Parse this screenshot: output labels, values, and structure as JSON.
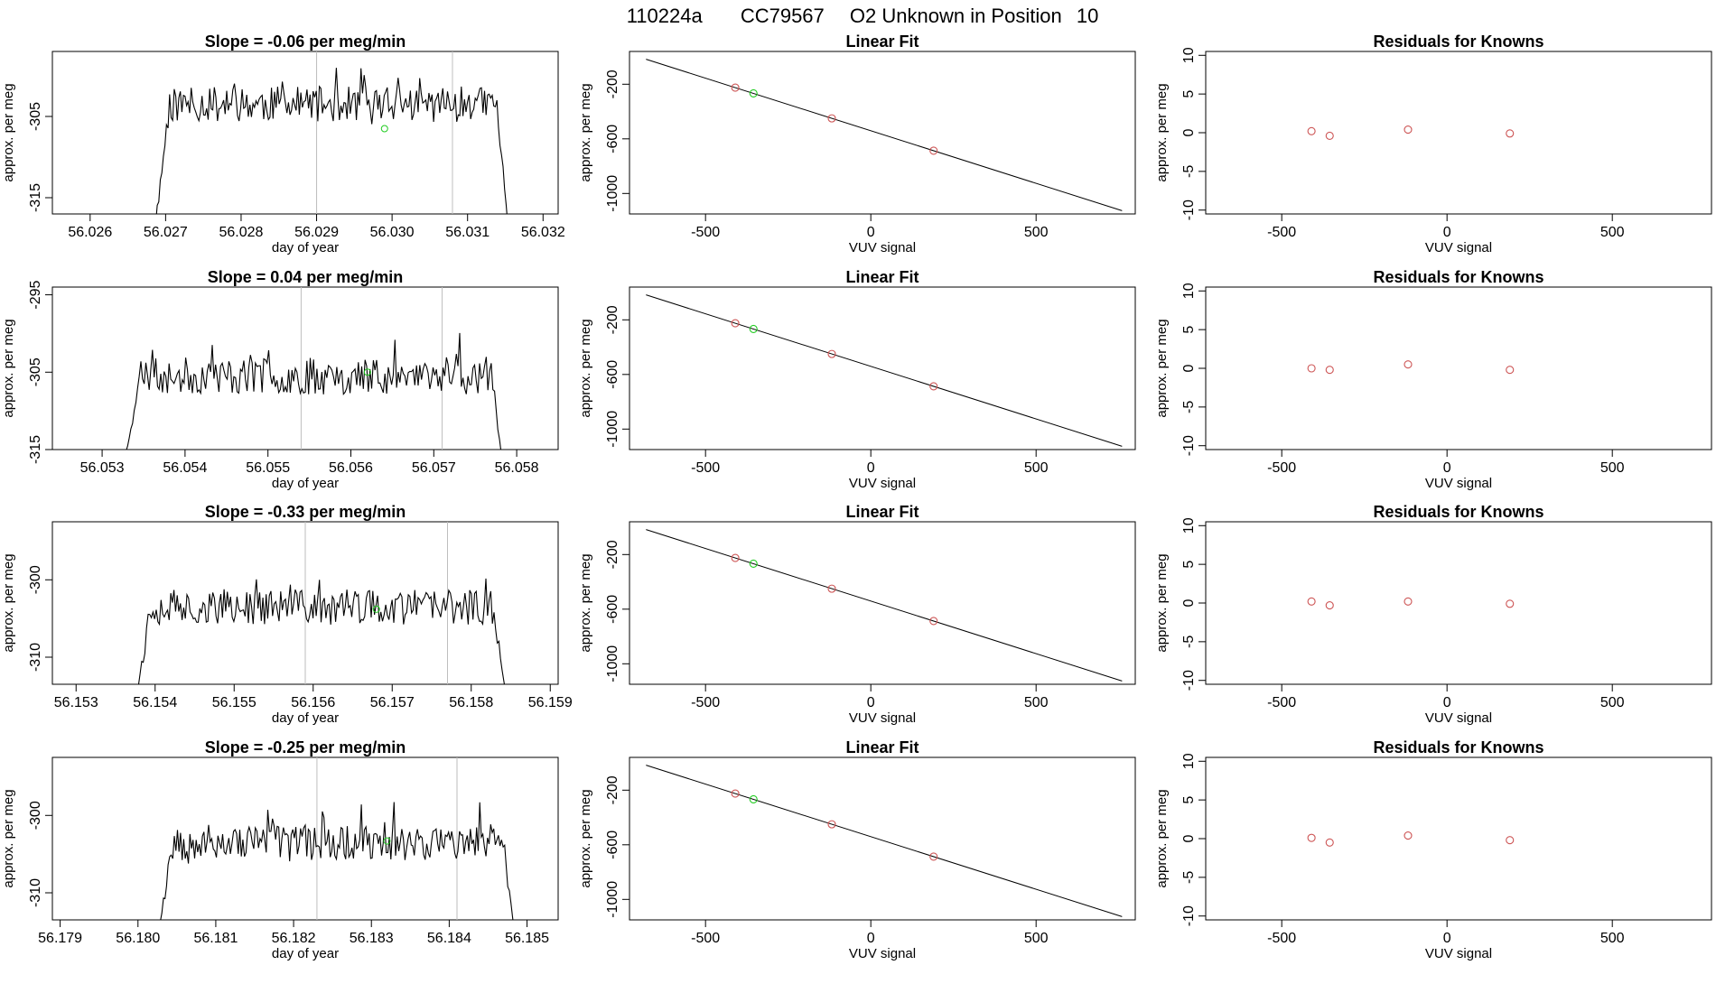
{
  "page": {
    "title_id": "110224a",
    "title_tank": "CC79567",
    "title_desc": "O2 Unknown in Position",
    "title_pos": "10"
  },
  "colors": {
    "known": "#cd5555",
    "unknown": "#22cc22",
    "series": "#000000",
    "vline": "#bebebe"
  },
  "chart_data": [
    {
      "type": "line",
      "row": 1,
      "title": "Slope =  -0.06  per meg/min",
      "xlabel": "day of year",
      "ylabel": "approx. per meg",
      "xlim": [
        56.0255,
        56.0322
      ],
      "ylim": [
        -317,
        -297
      ],
      "xticks": [
        56.026,
        56.027,
        56.028,
        56.029,
        56.03,
        56.031,
        56.032
      ],
      "xtick_labels": [
        "56.026",
        "56.027",
        "56.028",
        "56.029",
        "56.030",
        "56.031",
        "56.032"
      ],
      "yticks": [
        -315,
        -305
      ],
      "ytick_labels": [
        "-315",
        "-305"
      ],
      "xstart": 56.0268,
      "xend": 56.0316,
      "vlines": [
        56.029,
        56.0308
      ],
      "unknown_point": {
        "x": 56.0299,
        "y": -306.5
      },
      "seed": 11,
      "base": -303.5,
      "amp": 2.2,
      "start_y": -320,
      "end_y": -320
    },
    {
      "type": "line",
      "row": 2,
      "title": "Slope =  0.04  per meg/min",
      "xlabel": "day of year",
      "ylabel": "approx. per meg",
      "xlim": [
        56.0524,
        56.0585
      ],
      "ylim": [
        -315,
        -294
      ],
      "xticks": [
        56.053,
        56.054,
        56.055,
        56.056,
        56.057,
        56.058
      ],
      "xtick_labels": [
        "56.053",
        "56.054",
        "56.055",
        "56.056",
        "56.057",
        "56.058"
      ],
      "yticks": [
        -315,
        -305,
        -295
      ],
      "ytick_labels": [
        "-315",
        "-305",
        "-295"
      ],
      "xstart": 56.0532,
      "xend": 56.0579,
      "vlines": [
        56.0554,
        56.0571
      ],
      "unknown_point": {
        "x": 56.0562,
        "y": -305.0
      },
      "seed": 23,
      "base": -305.5,
      "amp": 2.4,
      "start_y": -318,
      "end_y": -318
    },
    {
      "type": "line",
      "row": 3,
      "title": "Slope =  -0.33  per meg/min",
      "xlabel": "day of year",
      "ylabel": "approx. per meg",
      "xlim": [
        56.1527,
        56.1591
      ],
      "ylim": [
        -313.5,
        -292.5
      ],
      "xticks": [
        56.153,
        56.154,
        56.155,
        56.156,
        56.157,
        56.158,
        56.159
      ],
      "xtick_labels": [
        "56.153",
        "56.154",
        "56.155",
        "56.156",
        "56.157",
        "56.158",
        "56.159"
      ],
      "yticks": [
        -310,
        -300
      ],
      "ytick_labels": [
        "-310",
        "-300"
      ],
      "xstart": 56.1537,
      "xend": 56.1585,
      "vlines": [
        56.1559,
        56.1577
      ],
      "unknown_point": {
        "x": 56.1568,
        "y": -303.8
      },
      "seed": 37,
      "base": -303.5,
      "amp": 2.3,
      "start_y": -316,
      "end_y": -316
    },
    {
      "type": "line",
      "row": 4,
      "title": "Slope =  -0.25  per meg/min",
      "xlabel": "day of year",
      "ylabel": "approx. per meg",
      "xlim": [
        56.1789,
        56.1854
      ],
      "ylim": [
        -313.5,
        -292.5
      ],
      "xticks": [
        56.179,
        56.18,
        56.181,
        56.182,
        56.183,
        56.184,
        56.185
      ],
      "xtick_labels": [
        "56.179",
        "56.180",
        "56.181",
        "56.182",
        "56.183",
        "56.184",
        "56.185"
      ],
      "yticks": [
        -310,
        -300
      ],
      "ytick_labels": [
        "-310",
        "-300"
      ],
      "xstart": 56.1802,
      "xend": 56.1849,
      "vlines": [
        56.1823,
        56.1841
      ],
      "unknown_point": {
        "x": 56.1832,
        "y": -303.3
      },
      "seed": 53,
      "base": -303.5,
      "amp": 2.3,
      "start_y": -316,
      "end_y": -316
    },
    {
      "type": "scatter",
      "row": 1,
      "title": "Linear Fit",
      "xlabel": "VUV signal",
      "ylabel": "approx. per meg",
      "xlim": [
        -730,
        800
      ],
      "ylim": [
        -1150,
        40
      ],
      "xticks": [
        -500,
        0,
        500
      ],
      "xtick_labels": [
        "-500",
        "0",
        "500"
      ],
      "yticks": [
        -1000,
        -600,
        -200
      ],
      "ytick_labels": [
        "-1000",
        "-600",
        "-200"
      ],
      "fit_line": {
        "x1": -680,
        "y1": -17,
        "x2": 760,
        "y2": -1126
      },
      "known_points": [
        {
          "x": -410,
          "y": -225
        },
        {
          "x": -118,
          "y": -450
        },
        {
          "x": 190,
          "y": -687
        }
      ],
      "unknown_points": [
        {
          "x": -355,
          "y": -267
        }
      ]
    },
    {
      "type": "scatter",
      "row": 2,
      "title": "Linear Fit",
      "xlabel": "VUV signal",
      "ylabel": "approx. per meg",
      "xlim": [
        -730,
        800
      ],
      "ylim": [
        -1150,
        40
      ],
      "xticks": [
        -500,
        0,
        500
      ],
      "xtick_labels": [
        "-500",
        "0",
        "500"
      ],
      "yticks": [
        -1000,
        -600,
        -200
      ],
      "ytick_labels": [
        "-1000",
        "-600",
        "-200"
      ],
      "fit_line": {
        "x1": -680,
        "y1": -17,
        "x2": 760,
        "y2": -1126
      },
      "known_points": [
        {
          "x": -410,
          "y": -225
        },
        {
          "x": -118,
          "y": -450
        },
        {
          "x": 190,
          "y": -687
        }
      ],
      "unknown_points": [
        {
          "x": -355,
          "y": -267
        }
      ]
    },
    {
      "type": "scatter",
      "row": 3,
      "title": "Linear Fit",
      "xlabel": "VUV signal",
      "ylabel": "approx. per meg",
      "xlim": [
        -730,
        800
      ],
      "ylim": [
        -1150,
        40
      ],
      "xticks": [
        -500,
        0,
        500
      ],
      "xtick_labels": [
        "-500",
        "0",
        "500"
      ],
      "yticks": [
        -1000,
        -600,
        -200
      ],
      "ytick_labels": [
        "-1000",
        "-600",
        "-200"
      ],
      "fit_line": {
        "x1": -680,
        "y1": -17,
        "x2": 760,
        "y2": -1126
      },
      "known_points": [
        {
          "x": -410,
          "y": -225
        },
        {
          "x": -118,
          "y": -450
        },
        {
          "x": 190,
          "y": -687
        }
      ],
      "unknown_points": [
        {
          "x": -355,
          "y": -267
        }
      ]
    },
    {
      "type": "scatter",
      "row": 4,
      "title": "Linear Fit",
      "xlabel": "VUV signal",
      "ylabel": "approx. per meg",
      "xlim": [
        -730,
        800
      ],
      "ylim": [
        -1150,
        40
      ],
      "xticks": [
        -500,
        0,
        500
      ],
      "xtick_labels": [
        "-500",
        "0",
        "500"
      ],
      "yticks": [
        -1000,
        -600,
        -200
      ],
      "ytick_labels": [
        "-1000",
        "-600",
        "-200"
      ],
      "fit_line": {
        "x1": -680,
        "y1": -17,
        "x2": 760,
        "y2": -1126
      },
      "known_points": [
        {
          "x": -410,
          "y": -225
        },
        {
          "x": -118,
          "y": -450
        },
        {
          "x": 190,
          "y": -687
        }
      ],
      "unknown_points": [
        {
          "x": -355,
          "y": -267
        }
      ]
    },
    {
      "type": "scatter",
      "row": 1,
      "title": "Residuals for Knowns",
      "xlabel": "VUV signal",
      "ylabel": "approx. per meg",
      "xlim": [
        -730,
        800
      ],
      "ylim": [
        -10.5,
        10.5
      ],
      "xticks": [
        -500,
        0,
        500
      ],
      "xtick_labels": [
        "-500",
        "0",
        "500"
      ],
      "yticks": [
        -10,
        -5,
        0,
        5,
        10
      ],
      "ytick_labels": [
        "-10",
        "-5",
        "0",
        "5",
        "10"
      ],
      "known_points": [
        {
          "x": -410,
          "y": 0.2
        },
        {
          "x": -355,
          "y": -0.4
        },
        {
          "x": -118,
          "y": 0.4
        },
        {
          "x": 190,
          "y": -0.1
        }
      ]
    },
    {
      "type": "scatter",
      "row": 2,
      "title": "Residuals for Knowns",
      "xlabel": "VUV signal",
      "ylabel": "approx. per meg",
      "xlim": [
        -730,
        800
      ],
      "ylim": [
        -10.5,
        10.5
      ],
      "xticks": [
        -500,
        0,
        500
      ],
      "xtick_labels": [
        "-500",
        "0",
        "500"
      ],
      "yticks": [
        -10,
        -5,
        0,
        5,
        10
      ],
      "ytick_labels": [
        "-10",
        "-5",
        "0",
        "5",
        "10"
      ],
      "known_points": [
        {
          "x": -410,
          "y": 0.0
        },
        {
          "x": -355,
          "y": -0.2
        },
        {
          "x": -118,
          "y": 0.5
        },
        {
          "x": 190,
          "y": -0.2
        }
      ]
    },
    {
      "type": "scatter",
      "row": 3,
      "title": "Residuals for Knowns",
      "xlabel": "VUV signal",
      "ylabel": "approx. per meg",
      "xlim": [
        -730,
        800
      ],
      "ylim": [
        -10.5,
        10.5
      ],
      "xticks": [
        -500,
        0,
        500
      ],
      "xtick_labels": [
        "-500",
        "0",
        "500"
      ],
      "yticks": [
        -10,
        -5,
        0,
        5,
        10
      ],
      "ytick_labels": [
        "-10",
        "-5",
        "0",
        "5",
        "10"
      ],
      "known_points": [
        {
          "x": -410,
          "y": 0.2
        },
        {
          "x": -355,
          "y": -0.3
        },
        {
          "x": -118,
          "y": 0.2
        },
        {
          "x": 190,
          "y": -0.1
        }
      ]
    },
    {
      "type": "scatter",
      "row": 4,
      "title": "Residuals for Knowns",
      "xlabel": "VUV signal",
      "ylabel": "approx. per meg",
      "xlim": [
        -730,
        800
      ],
      "ylim": [
        -10.5,
        10.5
      ],
      "xticks": [
        -500,
        0,
        500
      ],
      "xtick_labels": [
        "-500",
        "0",
        "500"
      ],
      "yticks": [
        -10,
        -5,
        0,
        5,
        10
      ],
      "ytick_labels": [
        "-10",
        "-5",
        "0",
        "5",
        "10"
      ],
      "known_points": [
        {
          "x": -410,
          "y": 0.1
        },
        {
          "x": -355,
          "y": -0.5
        },
        {
          "x": -118,
          "y": 0.4
        },
        {
          "x": 190,
          "y": -0.2
        }
      ]
    }
  ]
}
